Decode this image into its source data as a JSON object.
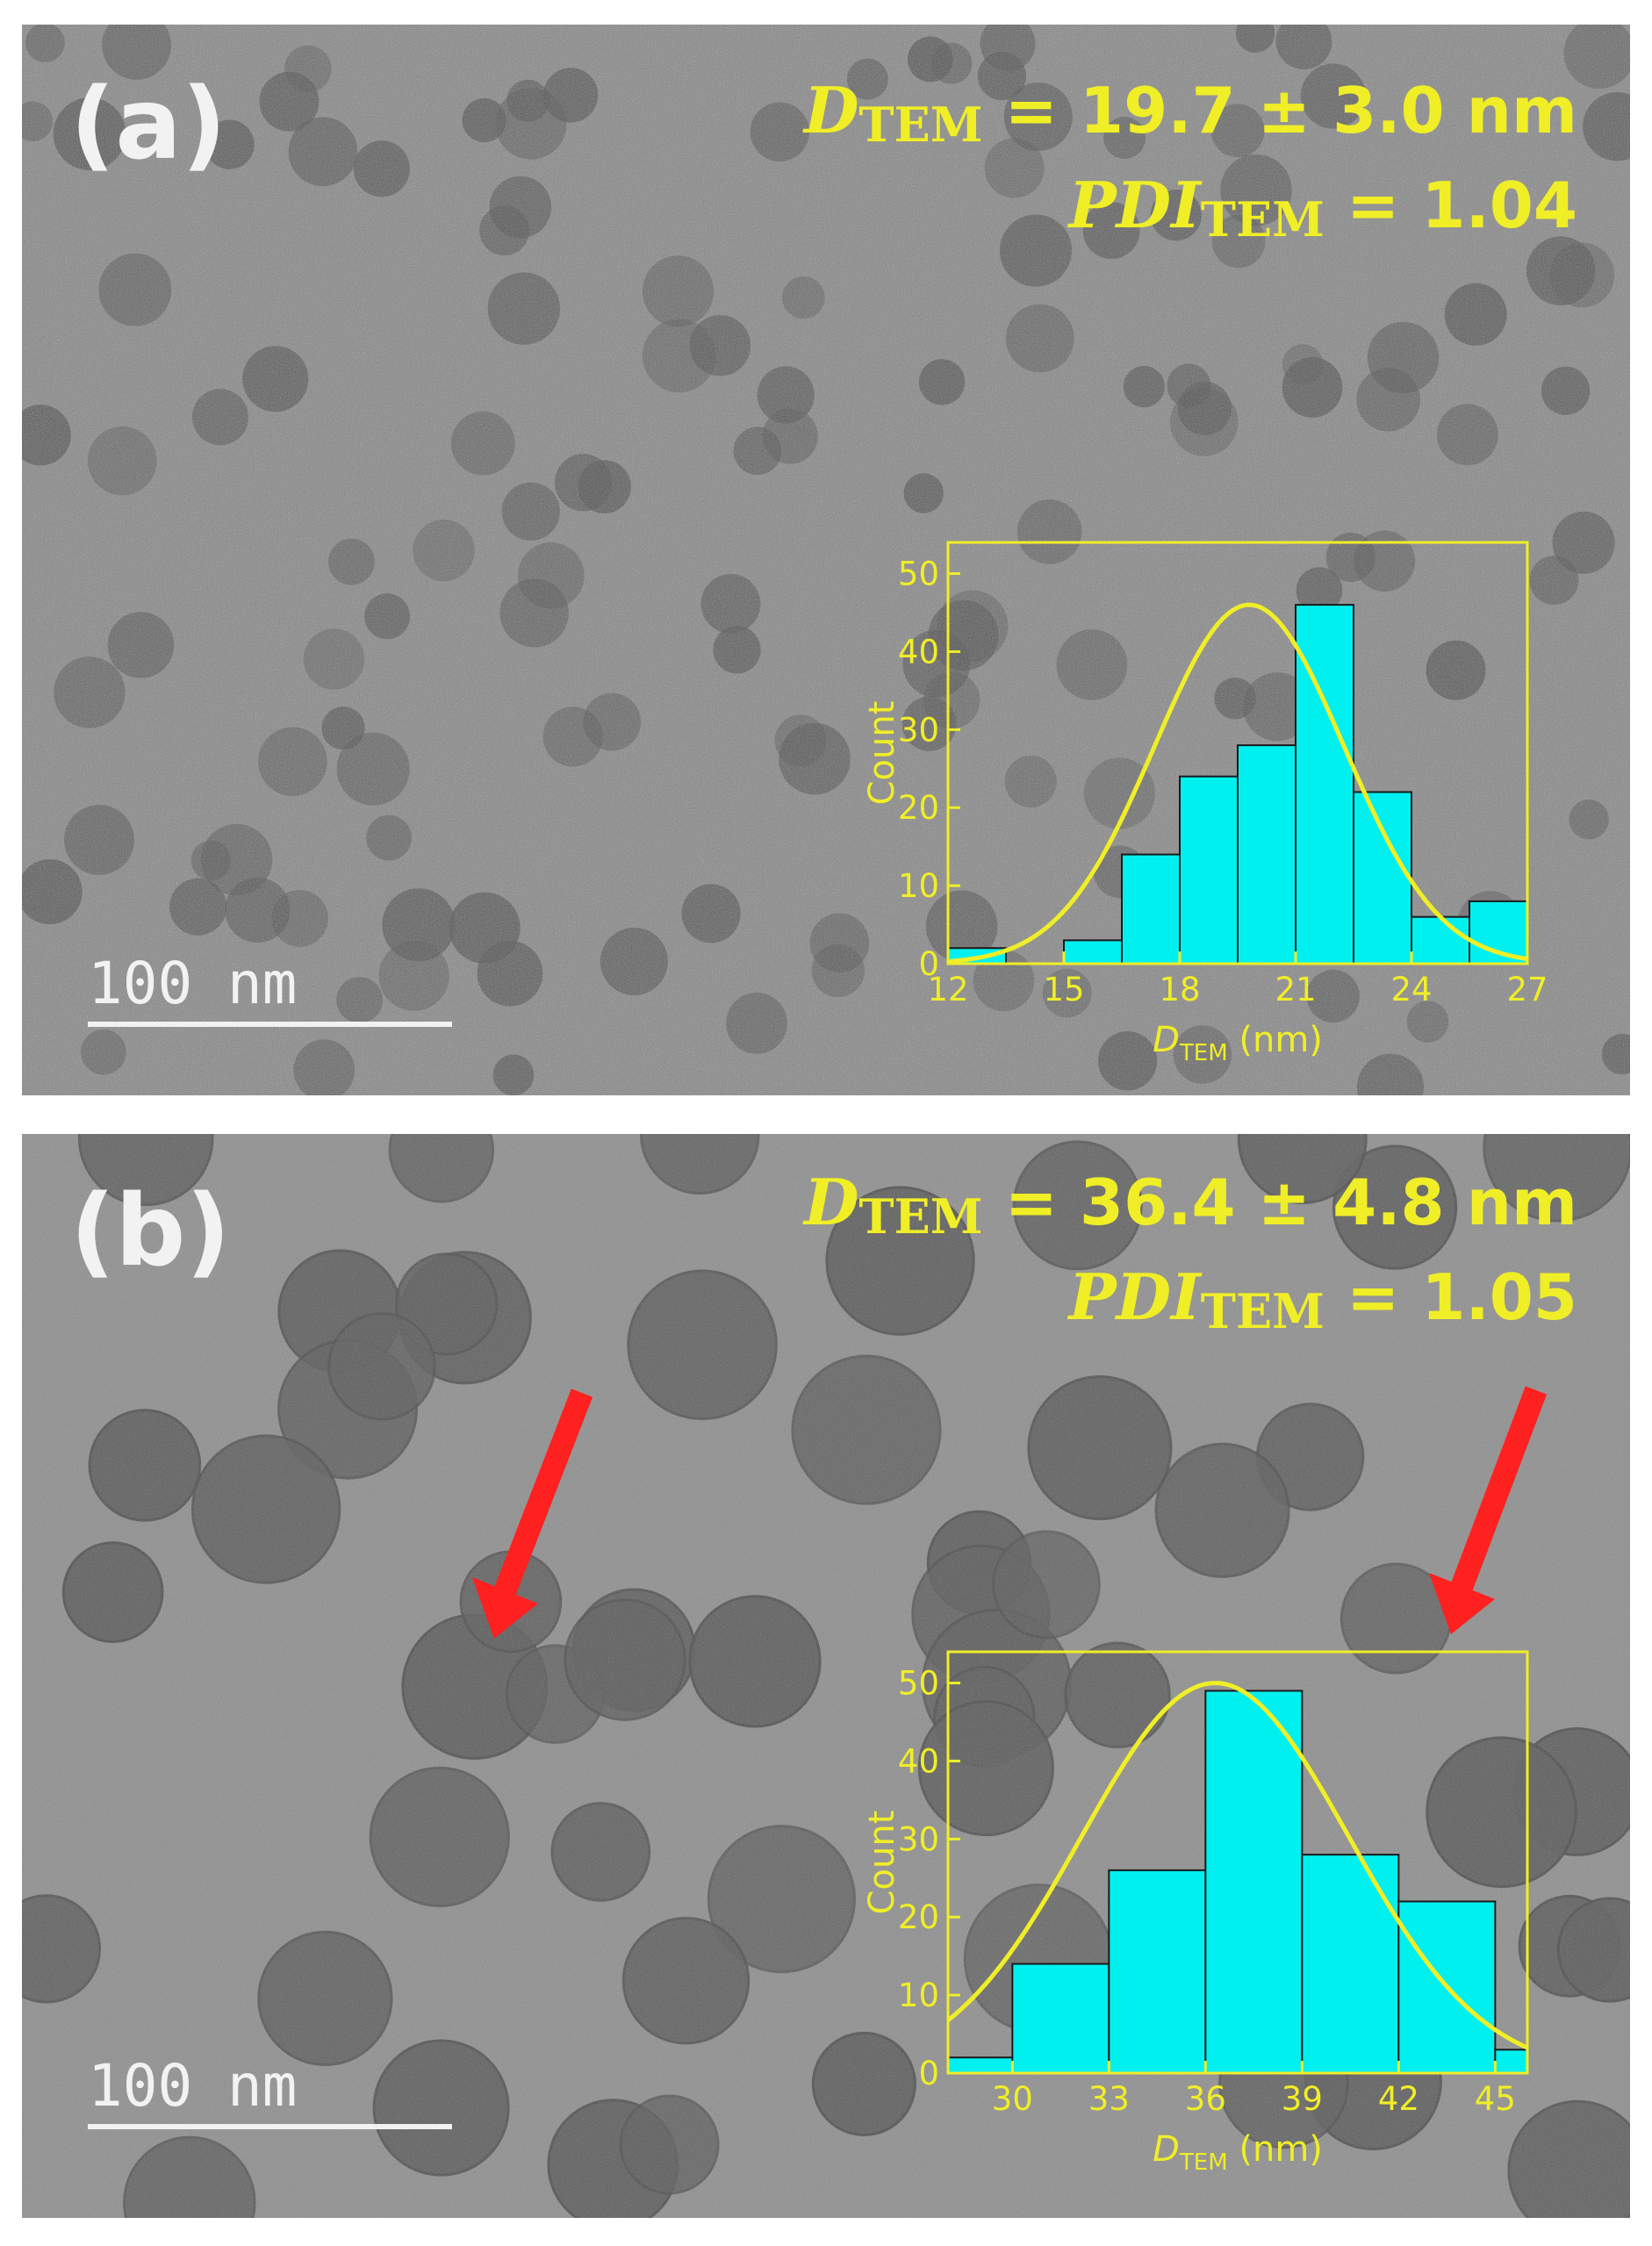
{
  "panels": [
    {
      "label": "(a)",
      "stat_d": {
        "symbol": "D",
        "sub": "TEM",
        "value": " = 19.7 ± 3.0 nm"
      },
      "stat_pdi": {
        "symbol": "PDI",
        "sub": "TEM",
        "value": " = 1.04"
      },
      "scale_bar": "100 nm"
    },
    {
      "label": "(b)",
      "stat_d": {
        "symbol": "D",
        "sub": "TEM",
        "value": " = 36.4 ± 4.8 nm"
      },
      "stat_pdi": {
        "symbol": "PDI",
        "sub": "TEM",
        "value": " = 1.05"
      },
      "scale_bar": "100 nm"
    }
  ],
  "colors": {
    "annotation": "#f0ee27",
    "bars": "#00f0f0",
    "arrow": "#ff2020"
  },
  "chart_data": [
    {
      "type": "bar",
      "panel": "(a)",
      "xlabel": "D",
      "xlabel_sub": "TEM",
      "xlabel_unit": " (nm)",
      "ylabel": "Count",
      "xlim": [
        12,
        27
      ],
      "ylim": [
        0,
        54
      ],
      "xticks": [
        12,
        15,
        18,
        21,
        24,
        27
      ],
      "yticks": [
        0,
        10,
        20,
        30,
        40,
        50
      ],
      "bin_width": 1.5,
      "bins_left": [
        12,
        13.5,
        15,
        16.5,
        18,
        19.5,
        21,
        22.5,
        24,
        25.5
      ],
      "values": [
        2,
        0,
        3,
        14,
        24,
        28,
        46,
        22,
        6,
        8
      ],
      "fit": {
        "type": "gaussian",
        "mean": 19.8,
        "sigma": 2.45,
        "amplitude": 46
      },
      "grid": false
    },
    {
      "type": "bar",
      "panel": "(b)",
      "xlabel": "D",
      "xlabel_sub": "TEM",
      "xlabel_unit": " (nm)",
      "ylabel": "Count",
      "xlim": [
        28,
        46
      ],
      "ylim": [
        0,
        54
      ],
      "xticks": [
        30,
        33,
        36,
        39,
        42,
        45
      ],
      "yticks": [
        0,
        10,
        20,
        30,
        40,
        50
      ],
      "bin_width": 3,
      "bins_left": [
        27,
        30,
        33,
        36,
        39,
        42,
        45
      ],
      "values": [
        2,
        14,
        26,
        49,
        28,
        22,
        3
      ],
      "fit": {
        "type": "gaussian",
        "mean": 36.3,
        "sigma": 4.15,
        "amplitude": 50
      },
      "grid": false
    }
  ]
}
